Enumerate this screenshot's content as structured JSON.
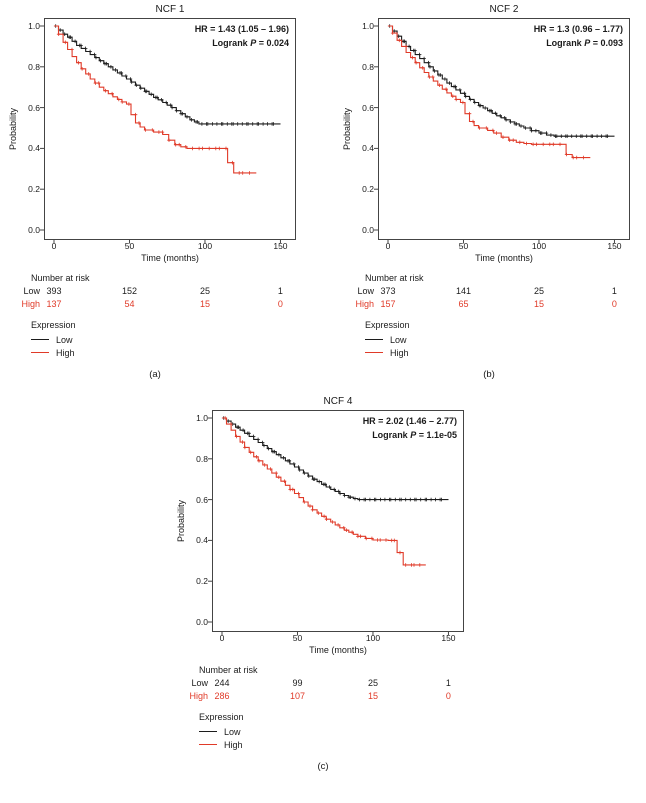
{
  "chart_data": [
    {
      "type": "line",
      "subtype": "kaplan-meier",
      "letter": "(a)",
      "title": "NCF 1",
      "hr_text": "HR = 1.43 (1.05 – 1.96)",
      "logrank_prefix": "Logrank ",
      "logrank_p": "P",
      "logrank_value": " = 0.024",
      "xlabel": "Time (months)",
      "ylabel": "Probability",
      "x_ticks": [
        0,
        50,
        100,
        150
      ],
      "y_ticks": [
        "1.0",
        "0.8",
        "0.6",
        "0.4",
        "0.2",
        "0.0"
      ],
      "xlim": [
        0,
        155
      ],
      "ylim": [
        0,
        1
      ],
      "risk_title": "Number at risk",
      "risk_rows": [
        {
          "label": "Low",
          "color": "#1c1c1c",
          "values": [
            "393",
            "152",
            "25",
            "1"
          ]
        },
        {
          "label": "High",
          "color": "#e03a28",
          "values": [
            "137",
            "54",
            "15",
            "0"
          ]
        }
      ],
      "legend_title": "Expression",
      "legend_items": [
        {
          "label": "Low",
          "color": "#1c1c1c"
        },
        {
          "label": "High",
          "color": "#e03a28"
        }
      ],
      "series": [
        {
          "name": "Low",
          "color": "#1c1c1c",
          "censor_step": 2.4,
          "censor_range": [
            2,
            148
          ],
          "points": [
            [
              0,
              1.0
            ],
            [
              3,
              0.98
            ],
            [
              6,
              0.96
            ],
            [
              9,
              0.945
            ],
            [
              12,
              0.925
            ],
            [
              15,
              0.905
            ],
            [
              18,
              0.89
            ],
            [
              21,
              0.875
            ],
            [
              24,
              0.86
            ],
            [
              27,
              0.845
            ],
            [
              30,
              0.83
            ],
            [
              33,
              0.815
            ],
            [
              36,
              0.8
            ],
            [
              39,
              0.785
            ],
            [
              42,
              0.77
            ],
            [
              45,
              0.755
            ],
            [
              48,
              0.74
            ],
            [
              51,
              0.725
            ],
            [
              54,
              0.71
            ],
            [
              57,
              0.695
            ],
            [
              60,
              0.68
            ],
            [
              63,
              0.665
            ],
            [
              66,
              0.65
            ],
            [
              69,
              0.638
            ],
            [
              72,
              0.625
            ],
            [
              75,
              0.612
            ],
            [
              78,
              0.6
            ],
            [
              81,
              0.585
            ],
            [
              84,
              0.57
            ],
            [
              87,
              0.555
            ],
            [
              90,
              0.54
            ],
            [
              93,
              0.53
            ],
            [
              96,
              0.52
            ],
            [
              150,
              0.52
            ]
          ]
        },
        {
          "name": "High",
          "color": "#e03a28",
          "censor_step": 3.8,
          "censor_range": [
            4,
            132
          ],
          "points": [
            [
              0,
              1.0
            ],
            [
              3,
              0.96
            ],
            [
              6,
              0.92
            ],
            [
              9,
              0.885
            ],
            [
              12,
              0.85
            ],
            [
              15,
              0.82
            ],
            [
              18,
              0.79
            ],
            [
              21,
              0.765
            ],
            [
              24,
              0.74
            ],
            [
              27,
              0.72
            ],
            [
              30,
              0.7
            ],
            [
              33,
              0.683
            ],
            [
              36,
              0.668
            ],
            [
              39,
              0.653
            ],
            [
              42,
              0.64
            ],
            [
              45,
              0.628
            ],
            [
              48,
              0.617
            ],
            [
              51,
              0.565
            ],
            [
              54,
              0.525
            ],
            [
              57,
              0.505
            ],
            [
              60,
              0.49
            ],
            [
              66,
              0.48
            ],
            [
              72,
              0.468
            ],
            [
              76,
              0.44
            ],
            [
              80,
              0.418
            ],
            [
              84,
              0.408
            ],
            [
              88,
              0.4
            ],
            [
              100,
              0.4
            ],
            [
              112,
              0.4
            ],
            [
              115,
              0.33
            ],
            [
              119,
              0.28
            ],
            [
              134,
              0.28
            ]
          ]
        }
      ]
    },
    {
      "type": "line",
      "subtype": "kaplan-meier",
      "letter": "(b)",
      "title": "NCF 2",
      "hr_text": "HR = 1.3 (0.96 – 1.77)",
      "logrank_prefix": "Logrank ",
      "logrank_p": "P",
      "logrank_value": " = 0.093",
      "xlabel": "Time (months)",
      "ylabel": "Probability",
      "x_ticks": [
        0,
        50,
        100,
        150
      ],
      "y_ticks": [
        "1.0",
        "0.8",
        "0.6",
        "0.4",
        "0.2",
        "0.0"
      ],
      "xlim": [
        0,
        155
      ],
      "ylim": [
        0,
        1
      ],
      "risk_title": "Number at risk",
      "risk_rows": [
        {
          "label": "Low",
          "color": "#1c1c1c",
          "values": [
            "373",
            "141",
            "25",
            "1"
          ]
        },
        {
          "label": "High",
          "color": "#e03a28",
          "values": [
            "157",
            "65",
            "15",
            "0"
          ]
        }
      ],
      "legend_title": "Expression",
      "legend_items": [
        {
          "label": "Low",
          "color": "#1c1c1c"
        },
        {
          "label": "High",
          "color": "#e03a28"
        }
      ],
      "series": [
        {
          "name": "Low",
          "color": "#1c1c1c",
          "censor_step": 2.4,
          "censor_range": [
            2,
            148
          ],
          "points": [
            [
              0,
              1.0
            ],
            [
              3,
              0.975
            ],
            [
              6,
              0.95
            ],
            [
              9,
              0.925
            ],
            [
              12,
              0.9
            ],
            [
              15,
              0.88
            ],
            [
              18,
              0.86
            ],
            [
              21,
              0.84
            ],
            [
              24,
              0.82
            ],
            [
              27,
              0.8
            ],
            [
              30,
              0.78
            ],
            [
              33,
              0.76
            ],
            [
              36,
              0.74
            ],
            [
              39,
              0.72
            ],
            [
              42,
              0.703
            ],
            [
              45,
              0.687
            ],
            [
              48,
              0.67
            ],
            [
              51,
              0.655
            ],
            [
              54,
              0.64
            ],
            [
              57,
              0.625
            ],
            [
              60,
              0.61
            ],
            [
              63,
              0.598
            ],
            [
              66,
              0.585
            ],
            [
              69,
              0.572
            ],
            [
              72,
              0.56
            ],
            [
              75,
              0.55
            ],
            [
              78,
              0.54
            ],
            [
              81,
              0.53
            ],
            [
              84,
              0.52
            ],
            [
              87,
              0.51
            ],
            [
              90,
              0.5
            ],
            [
              95,
              0.487
            ],
            [
              100,
              0.475
            ],
            [
              105,
              0.465
            ],
            [
              110,
              0.46
            ],
            [
              150,
              0.46
            ]
          ]
        },
        {
          "name": "High",
          "color": "#e03a28",
          "censor_step": 3.8,
          "censor_range": [
            4,
            132
          ],
          "points": [
            [
              0,
              1.0
            ],
            [
              3,
              0.965
            ],
            [
              6,
              0.93
            ],
            [
              9,
              0.9
            ],
            [
              12,
              0.87
            ],
            [
              15,
              0.845
            ],
            [
              18,
              0.82
            ],
            [
              21,
              0.795
            ],
            [
              24,
              0.772
            ],
            [
              27,
              0.75
            ],
            [
              30,
              0.73
            ],
            [
              33,
              0.71
            ],
            [
              36,
              0.69
            ],
            [
              39,
              0.672
            ],
            [
              42,
              0.656
            ],
            [
              45,
              0.64
            ],
            [
              48,
              0.625
            ],
            [
              51,
              0.57
            ],
            [
              54,
              0.532
            ],
            [
              57,
              0.512
            ],
            [
              60,
              0.5
            ],
            [
              66,
              0.488
            ],
            [
              70,
              0.475
            ],
            [
              75,
              0.455
            ],
            [
              80,
              0.44
            ],
            [
              85,
              0.43
            ],
            [
              90,
              0.424
            ],
            [
              95,
              0.42
            ],
            [
              110,
              0.42
            ],
            [
              118,
              0.37
            ],
            [
              122,
              0.355
            ],
            [
              134,
              0.355
            ]
          ]
        }
      ]
    },
    {
      "type": "line",
      "subtype": "kaplan-meier",
      "letter": "(c)",
      "title": "NCF 4",
      "hr_text": "HR = 2.02 (1.46 – 2.77)",
      "logrank_prefix": "Logrank ",
      "logrank_p": "P",
      "logrank_value": " = 1.1e-05",
      "xlabel": "Time (months)",
      "ylabel": "Probability",
      "x_ticks": [
        0,
        50,
        100,
        150
      ],
      "y_ticks": [
        "1.0",
        "0.8",
        "0.6",
        "0.4",
        "0.2",
        "0.0"
      ],
      "xlim": [
        0,
        155
      ],
      "ylim": [
        0,
        1
      ],
      "risk_title": "Number at risk",
      "risk_rows": [
        {
          "label": "Low",
          "color": "#1c1c1c",
          "values": [
            "244",
            "99",
            "25",
            "1"
          ]
        },
        {
          "label": "High",
          "color": "#e03a28",
          "values": [
            "286",
            "107",
            "15",
            "0"
          ]
        }
      ],
      "legend_title": "Expression",
      "legend_items": [
        {
          "label": "Low",
          "color": "#1c1c1c"
        },
        {
          "label": "High",
          "color": "#e03a28"
        }
      ],
      "series": [
        {
          "name": "Low",
          "color": "#1c1c1c",
          "censor_step": 2.4,
          "censor_range": [
            2,
            148
          ],
          "points": [
            [
              0,
              1.0
            ],
            [
              3,
              0.985
            ],
            [
              6,
              0.97
            ],
            [
              9,
              0.955
            ],
            [
              12,
              0.94
            ],
            [
              15,
              0.925
            ],
            [
              18,
              0.91
            ],
            [
              21,
              0.895
            ],
            [
              24,
              0.88
            ],
            [
              27,
              0.865
            ],
            [
              30,
              0.85
            ],
            [
              33,
              0.835
            ],
            [
              36,
              0.82
            ],
            [
              39,
              0.805
            ],
            [
              42,
              0.79
            ],
            [
              45,
              0.775
            ],
            [
              48,
              0.76
            ],
            [
              51,
              0.745
            ],
            [
              54,
              0.73
            ],
            [
              57,
              0.715
            ],
            [
              60,
              0.7
            ],
            [
              63,
              0.688
            ],
            [
              66,
              0.675
            ],
            [
              69,
              0.662
            ],
            [
              72,
              0.65
            ],
            [
              75,
              0.64
            ],
            [
              78,
              0.63
            ],
            [
              81,
              0.62
            ],
            [
              84,
              0.612
            ],
            [
              87,
              0.605
            ],
            [
              90,
              0.6
            ],
            [
              150,
              0.6
            ]
          ]
        },
        {
          "name": "High",
          "color": "#e03a28",
          "censor_step": 3.2,
          "censor_range": [
            3,
            133
          ],
          "points": [
            [
              0,
              1.0
            ],
            [
              3,
              0.97
            ],
            [
              6,
              0.94
            ],
            [
              9,
              0.91
            ],
            [
              12,
              0.882
            ],
            [
              15,
              0.856
            ],
            [
              18,
              0.832
            ],
            [
              21,
              0.81
            ],
            [
              24,
              0.79
            ],
            [
              27,
              0.77
            ],
            [
              30,
              0.75
            ],
            [
              33,
              0.73
            ],
            [
              36,
              0.71
            ],
            [
              39,
              0.69
            ],
            [
              42,
              0.67
            ],
            [
              45,
              0.65
            ],
            [
              48,
              0.63
            ],
            [
              51,
              0.61
            ],
            [
              54,
              0.588
            ],
            [
              57,
              0.568
            ],
            [
              60,
              0.55
            ],
            [
              63,
              0.534
            ],
            [
              66,
              0.518
            ],
            [
              69,
              0.504
            ],
            [
              72,
              0.49
            ],
            [
              75,
              0.476
            ],
            [
              78,
              0.462
            ],
            [
              81,
              0.45
            ],
            [
              84,
              0.44
            ],
            [
              87,
              0.43
            ],
            [
              90,
              0.42
            ],
            [
              95,
              0.41
            ],
            [
              100,
              0.402
            ],
            [
              110,
              0.4
            ],
            [
              116,
              0.34
            ],
            [
              120,
              0.28
            ],
            [
              135,
              0.28
            ]
          ]
        }
      ]
    }
  ]
}
